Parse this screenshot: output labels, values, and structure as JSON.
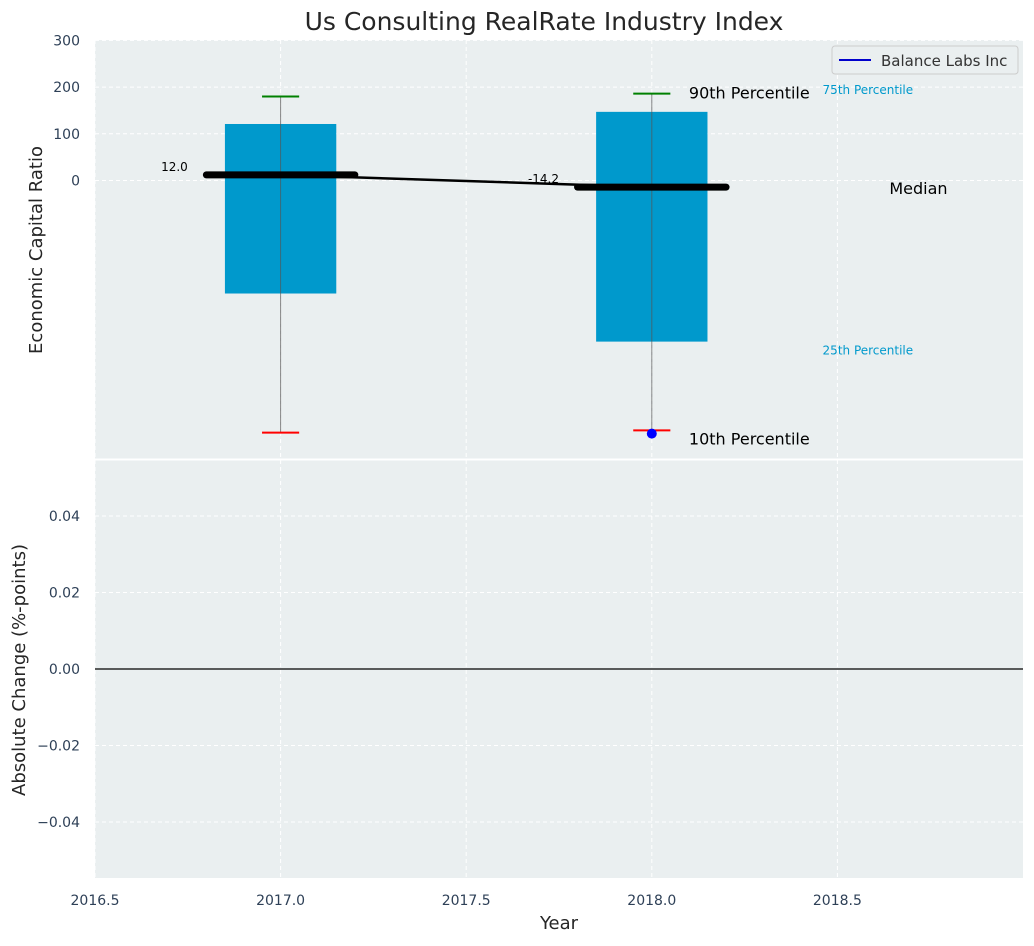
{
  "chart_data": [
    {
      "type": "box",
      "title": "Us Consulting RealRate Industry Index",
      "xlabel": "",
      "ylabel": "Economic Capital Ratio",
      "ytick_labels": [
        "300",
        "200",
        "100",
        "0"
      ],
      "ylim": [
        -590,
        300
      ],
      "x": [
        2017.0,
        2018.0
      ],
      "series": [
        {
          "name": "",
          "p10": [
            -540,
            -535
          ],
          "p25": [
            -242,
            -345
          ],
          "median": [
            12.0,
            -14.2
          ],
          "p75": [
            121,
            147
          ],
          "p90": [
            180,
            186
          ]
        },
        {
          "name": "Balance Labs Inc",
          "values": [
            null,
            -542
          ]
        }
      ],
      "median_labels": [
        "12.0",
        "-14.2"
      ],
      "annotations": {
        "p90": "90th Percentile",
        "p75": "75th Percentile",
        "median": "Median",
        "p25": "25th Percentile",
        "p10": "10th Percentile"
      },
      "legend": {
        "entries": [
          "Balance Labs Inc"
        ],
        "placement": "top-right"
      },
      "grid": true,
      "colors": {
        "box": "#0099cc",
        "median_line": "#000000",
        "p90_whisker": "#008000",
        "p10_whisker": "#ff0000",
        "company_point": "#0000ff",
        "legend_line": "#0000cc",
        "annotation_blue": "#0099cc",
        "axes_bg": "#eaeff0"
      }
    },
    {
      "type": "line",
      "xlabel": "Year",
      "ylabel": "Absolute Change (%-points)",
      "xlim": [
        2016.5,
        2019.0
      ],
      "ylim": [
        -0.055,
        0.055
      ],
      "xtick_labels": [
        "2016.5",
        "2017.0",
        "2017.5",
        "2018.0",
        "2018.5"
      ],
      "ytick_labels": [
        "0.04",
        "0.02",
        "0.00",
        "−0.02",
        "−0.04"
      ],
      "series": [],
      "reference_line_y": 0.0,
      "grid": true
    }
  ]
}
